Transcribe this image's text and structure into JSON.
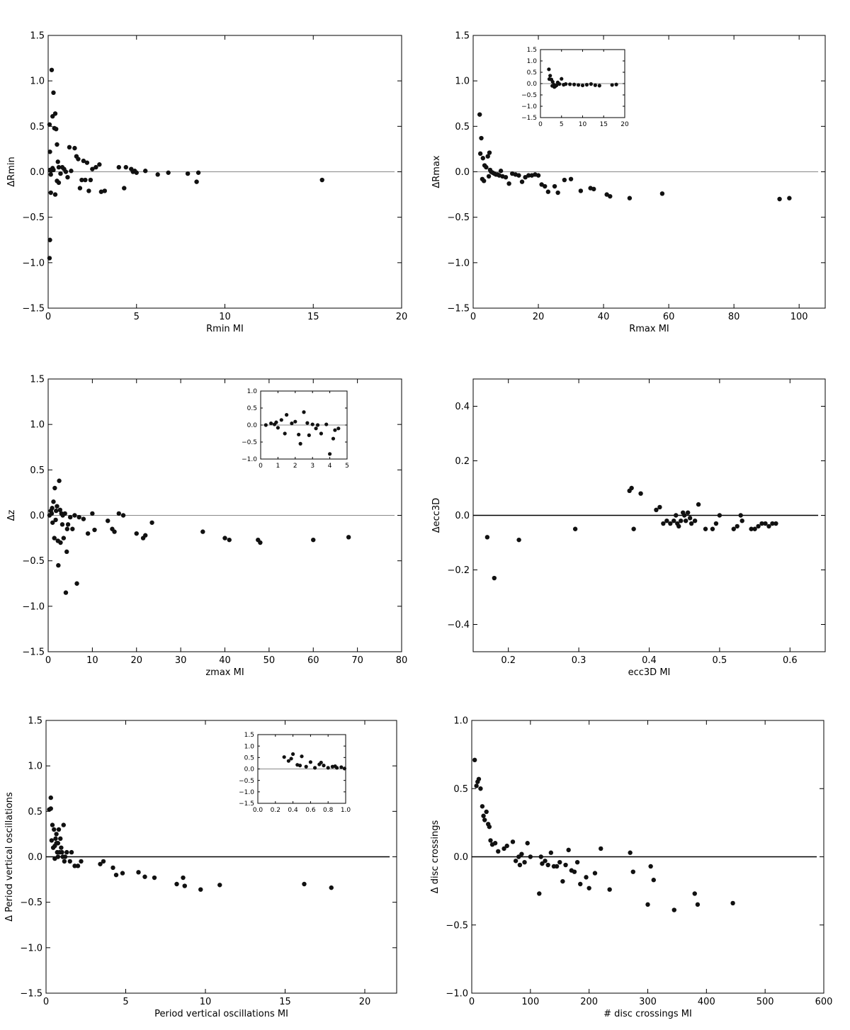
{
  "chart_data": [
    {
      "type": "scatter",
      "xlabel": "Rmin MI",
      "ylabel": "ΔRmin",
      "xlim": [
        0,
        20
      ],
      "ylim": [
        -1.5,
        1.5
      ],
      "xticks": [
        0,
        5,
        10,
        15,
        20
      ],
      "yticks": [
        -1.5,
        -1.0,
        -0.5,
        0.0,
        0.5,
        1.0,
        1.5
      ],
      "xtick_labels": [
        "0",
        "5",
        "10",
        "15",
        "20"
      ],
      "ytick_labels": [
        "−1.5",
        "−1.0",
        "−0.5",
        "0.0",
        "0.5",
        "1.0",
        "1.5"
      ],
      "zero_line": "gray",
      "x": [
        0.05,
        0.1,
        0.15,
        0.2,
        0.25,
        0.3,
        0.35,
        0.4,
        0.45,
        0.5,
        0.55,
        0.6,
        0.05,
        0.1,
        0.15,
        0.2,
        0.25,
        0.3,
        0.4,
        0.5,
        0.6,
        0.7,
        0.8,
        0.9,
        1.0,
        1.1,
        1.2,
        1.3,
        1.5,
        1.6,
        1.7,
        1.8,
        1.9,
        2.0,
        2.1,
        2.2,
        2.3,
        2.4,
        2.5,
        2.7,
        2.9,
        3.0,
        3.2,
        4.0,
        4.3,
        4.4,
        4.7,
        4.8,
        4.9,
        5.0,
        5.5,
        6.2,
        6.8,
        7.9,
        8.4,
        8.5,
        15.5,
        0.1,
        0.15
      ],
      "y": [
        0.52,
        0.22,
        -0.23,
        1.12,
        0.61,
        0.87,
        0.48,
        0.64,
        0.47,
        0.3,
        0.11,
        0.05,
        -0.95,
        -0.75,
        0.01,
        0.02,
        0.04,
        0.02,
        -0.25,
        -0.1,
        -0.12,
        -0.02,
        0.05,
        0.03,
        0.0,
        -0.06,
        0.27,
        0.01,
        0.26,
        0.17,
        0.14,
        -0.18,
        -0.09,
        0.12,
        -0.09,
        0.1,
        -0.21,
        -0.09,
        0.03,
        0.05,
        0.08,
        -0.22,
        -0.21,
        0.05,
        -0.18,
        0.05,
        0.03,
        0.0,
        0.01,
        -0.01,
        0.01,
        -0.03,
        -0.01,
        -0.02,
        -0.11,
        -0.01,
        -0.09,
        0.02,
        -0.03
      ],
      "inset": null
    },
    {
      "type": "scatter",
      "xlabel": "Rmax MI",
      "ylabel": "ΔRmax",
      "xlim": [
        0,
        108
      ],
      "ylim": [
        -1.5,
        1.5
      ],
      "xticks": [
        0,
        20,
        40,
        60,
        80,
        100
      ],
      "yticks": [
        -1.5,
        -1.0,
        -0.5,
        0.0,
        0.5,
        1.0,
        1.5
      ],
      "xtick_labels": [
        "0",
        "20",
        "40",
        "60",
        "80",
        "100"
      ],
      "ytick_labels": [
        "−1.5",
        "−1.0",
        "−0.5",
        "0.0",
        "0.5",
        "1.0",
        "1.5"
      ],
      "zero_line": "gray",
      "x": [
        2,
        2.5,
        3,
        3.5,
        4,
        4.5,
        5,
        5.5,
        6,
        6.5,
        7,
        7.5,
        8,
        8.5,
        9,
        10,
        11,
        12,
        13,
        14,
        15,
        16,
        17,
        18,
        19,
        20,
        21,
        22,
        23,
        25,
        26,
        28,
        30,
        33,
        36,
        37,
        41,
        42,
        48,
        58,
        94,
        97,
        2.2,
        2.8,
        3.3,
        4.8,
        5.2
      ],
      "y": [
        0.63,
        0.37,
        0.15,
        0.07,
        0.05,
        0.17,
        0.21,
        0.0,
        -0.01,
        -0.02,
        -0.03,
        -0.03,
        -0.04,
        0.01,
        -0.05,
        -0.06,
        -0.13,
        -0.02,
        -0.03,
        -0.04,
        -0.11,
        -0.06,
        -0.04,
        -0.04,
        -0.03,
        -0.04,
        -0.14,
        -0.16,
        -0.22,
        -0.16,
        -0.23,
        -0.09,
        -0.08,
        -0.21,
        -0.18,
        -0.19,
        -0.25,
        -0.27,
        -0.29,
        -0.24,
        -0.3,
        -0.29,
        0.2,
        -0.08,
        -0.1,
        -0.05,
        0.02
      ],
      "inset": {
        "xlim": [
          0,
          20
        ],
        "ylim": [
          -1.5,
          1.5
        ],
        "xticks": [
          0,
          5,
          10,
          15,
          20
        ],
        "yticks": [
          -1.5,
          -1.0,
          -0.5,
          0.0,
          0.5,
          1.0,
          1.5
        ],
        "xtick_labels": [
          "0",
          "5",
          "10",
          "15",
          "20"
        ],
        "ytick_labels": [
          "−1.5",
          "−1.0",
          "−0.5",
          "0.0",
          "0.5",
          "1.0",
          "1.5"
        ],
        "x": [
          2,
          2.3,
          2.6,
          2.9,
          3.2,
          3.5,
          3.8,
          4.1,
          4.5,
          5,
          5.5,
          6,
          7,
          8,
          9,
          10,
          11,
          12,
          13,
          14,
          17,
          18,
          2.1,
          2.8,
          3.3
        ],
        "y": [
          0.63,
          0.35,
          0.18,
          0.08,
          -0.05,
          -0.12,
          -0.08,
          0.05,
          -0.02,
          0.21,
          -0.05,
          -0.02,
          -0.03,
          -0.04,
          -0.06,
          -0.08,
          -0.05,
          -0.02,
          -0.07,
          -0.09,
          -0.06,
          -0.04,
          0.2,
          -0.1,
          -0.15
        ]
      }
    },
    {
      "type": "scatter",
      "xlabel": "zmax MI",
      "ylabel": "Δz",
      "xlim": [
        0,
        80
      ],
      "ylim": [
        -1.5,
        1.5
      ],
      "xticks": [
        0,
        10,
        20,
        30,
        40,
        50,
        60,
        70,
        80
      ],
      "yticks": [
        -1.5,
        -1.0,
        -0.5,
        0.0,
        0.5,
        1.0,
        1.5
      ],
      "xtick_labels": [
        "0",
        "10",
        "20",
        "30",
        "40",
        "50",
        "60",
        "70",
        "80"
      ],
      "ytick_labels": [
        "−1.5",
        "−1.0",
        "−0.5",
        "0.0",
        "0.5",
        "1.0",
        "1.5"
      ],
      "zero_line": "gray",
      "x": [
        0.3,
        0.6,
        0.9,
        1.2,
        1.5,
        1.8,
        2.0,
        2.2,
        2.5,
        2.7,
        3.0,
        3.2,
        3.5,
        3.8,
        4.0,
        4.2,
        4.5,
        5,
        5.5,
        6,
        6.5,
        7,
        8,
        9,
        10,
        10.5,
        13.5,
        14.5,
        15,
        16,
        17,
        20,
        21.5,
        22,
        23.5,
        35,
        40,
        41,
        47.5,
        48,
        60,
        68,
        1.0,
        1.4,
        2.3,
        2.8,
        3.3,
        4.3,
        1.7,
        0.8
      ],
      "y": [
        0.0,
        0.05,
        0.08,
        0.15,
        0.3,
        0.05,
        0.1,
        -0.28,
        0.38,
        0.06,
        0.02,
        -0.1,
        -0.25,
        0.02,
        -0.85,
        -0.4,
        -0.1,
        -0.02,
        -0.15,
        0.0,
        -0.75,
        -0.02,
        -0.04,
        -0.2,
        0.02,
        -0.16,
        -0.06,
        -0.15,
        -0.18,
        0.02,
        0.0,
        -0.2,
        -0.25,
        -0.22,
        -0.08,
        -0.18,
        -0.25,
        -0.27,
        -0.27,
        -0.3,
        -0.27,
        -0.24,
        -0.08,
        -0.25,
        -0.55,
        -0.3,
        0.0,
        -0.15,
        -0.05,
        0.02
      ],
      "inset": {
        "xlim": [
          0,
          5
        ],
        "ylim": [
          -1.0,
          1.0
        ],
        "xticks": [
          0,
          1,
          2,
          3,
          4,
          5
        ],
        "yticks": [
          -1.0,
          -0.5,
          0.0,
          0.5,
          1.0
        ],
        "xtick_labels": [
          "0",
          "1",
          "2",
          "3",
          "4",
          "5"
        ],
        "ytick_labels": [
          "−1.0",
          "−0.5",
          "0.0",
          "0.5",
          "1.0"
        ],
        "x": [
          0.3,
          0.6,
          0.9,
          1.2,
          1.5,
          1.8,
          2.0,
          2.2,
          2.5,
          2.7,
          3.0,
          3.2,
          3.5,
          3.8,
          4.0,
          4.2,
          4.5,
          1.0,
          1.4,
          2.3,
          2.8,
          3.3,
          4.3,
          0.8
        ],
        "y": [
          0.0,
          0.05,
          0.08,
          0.15,
          0.3,
          0.05,
          0.1,
          -0.28,
          0.38,
          0.06,
          0.02,
          -0.1,
          -0.25,
          0.02,
          -0.85,
          -0.4,
          -0.1,
          -0.08,
          -0.25,
          -0.55,
          -0.3,
          0.0,
          -0.15,
          0.02
        ]
      }
    },
    {
      "type": "scatter",
      "xlabel": "ecc3D MI",
      "ylabel": "Δecc3D",
      "xlim": [
        0.15,
        0.65
      ],
      "ylim": [
        -0.5,
        0.5
      ],
      "xticks": [
        0.2,
        0.3,
        0.4,
        0.5,
        0.6
      ],
      "yticks": [
        -0.4,
        -0.2,
        0.0,
        0.2,
        0.4
      ],
      "xtick_labels": [
        "0.2",
        "0.3",
        "0.4",
        "0.5",
        "0.6"
      ],
      "ytick_labels": [
        "−0.4",
        "−0.2",
        "0.0",
        "0.2",
        "0.4"
      ],
      "zero_line": "black",
      "x": [
        0.17,
        0.18,
        0.215,
        0.295,
        0.375,
        0.378,
        0.372,
        0.388,
        0.41,
        0.415,
        0.42,
        0.425,
        0.43,
        0.435,
        0.44,
        0.445,
        0.448,
        0.45,
        0.452,
        0.455,
        0.46,
        0.465,
        0.47,
        0.48,
        0.49,
        0.495,
        0.5,
        0.52,
        0.525,
        0.53,
        0.532,
        0.545,
        0.55,
        0.555,
        0.56,
        0.565,
        0.57,
        0.575,
        0.58,
        0.442,
        0.438,
        0.458
      ],
      "y": [
        -0.08,
        -0.23,
        -0.09,
        -0.05,
        0.1,
        -0.05,
        0.09,
        0.08,
        0.02,
        0.03,
        -0.03,
        -0.02,
        -0.03,
        -0.02,
        -0.03,
        -0.02,
        0.01,
        0.0,
        -0.02,
        0.01,
        -0.03,
        -0.02,
        0.04,
        -0.05,
        -0.05,
        -0.03,
        0.0,
        -0.05,
        -0.04,
        0.0,
        -0.02,
        -0.05,
        -0.05,
        -0.04,
        -0.03,
        -0.03,
        -0.04,
        -0.03,
        -0.03,
        -0.04,
        0.0,
        -0.01
      ],
      "inset": null
    },
    {
      "type": "scatter",
      "xlabel": "Period vertical oscillations MI",
      "ylabel": "Δ Period vertical oscillations",
      "xlim": [
        0,
        22
      ],
      "ylim": [
        -1.5,
        1.5
      ],
      "xticks": [
        0,
        5,
        10,
        15,
        20
      ],
      "yticks": [
        -1.5,
        -1.0,
        -0.5,
        0.0,
        0.5,
        1.0,
        1.5
      ],
      "xtick_labels": [
        "0",
        "5",
        "10",
        "15",
        "20"
      ],
      "ytick_labels": [
        "−1.5",
        "−1.0",
        "−0.5",
        "0.0",
        "0.5",
        "1.0",
        "1.5"
      ],
      "zero_line": "black",
      "x": [
        0.2,
        0.3,
        0.35,
        0.4,
        0.45,
        0.5,
        0.55,
        0.6,
        0.65,
        0.7,
        0.75,
        0.8,
        0.85,
        0.9,
        0.95,
        1.0,
        1.1,
        1.2,
        1.3,
        1.5,
        1.6,
        1.8,
        2.0,
        2.2,
        3.4,
        3.6,
        4.2,
        4.4,
        4.8,
        5.8,
        6.2,
        6.8,
        8.2,
        8.6,
        8.7,
        9.7,
        10.9,
        16.2,
        17.9,
        0.3,
        0.55,
        0.75,
        1.05,
        1.15,
        0.65
      ],
      "y": [
        0.52,
        0.65,
        0.18,
        0.35,
        0.1,
        0.3,
        0.12,
        0.2,
        0.15,
        0.05,
        0.0,
        0.3,
        0.05,
        0.2,
        0.1,
        0.05,
        0.35,
        0.0,
        0.05,
        -0.05,
        0.05,
        -0.1,
        -0.1,
        -0.05,
        -0.08,
        -0.05,
        -0.12,
        -0.2,
        -0.18,
        -0.17,
        -0.22,
        -0.23,
        -0.3,
        -0.23,
        -0.32,
        -0.36,
        -0.31,
        -0.3,
        -0.34,
        0.53,
        -0.02,
        0.15,
        0.0,
        -0.05,
        0.25
      ],
      "inset": {
        "xlim": [
          0.0,
          1.0
        ],
        "ylim": [
          -1.5,
          1.5
        ],
        "xticks": [
          0.0,
          0.2,
          0.4,
          0.6,
          0.8,
          1.0
        ],
        "yticks": [
          -1.5,
          -1.0,
          -0.5,
          0.0,
          0.5,
          1.0,
          1.5
        ],
        "xtick_labels": [
          "0.0",
          "0.2",
          "0.4",
          "0.6",
          "0.8",
          "1.0"
        ],
        "ytick_labels": [
          "−1.5",
          "−1.0",
          "−0.5",
          "0.0",
          "0.5",
          "1.0",
          "1.5"
        ],
        "x": [
          0.3,
          0.35,
          0.4,
          0.45,
          0.5,
          0.55,
          0.6,
          0.65,
          0.7,
          0.75,
          0.8,
          0.85,
          0.9,
          0.95,
          1.0,
          0.38,
          0.48,
          0.72,
          0.88
        ],
        "y": [
          0.52,
          0.35,
          0.65,
          0.18,
          0.55,
          0.1,
          0.3,
          0.05,
          0.2,
          0.15,
          0.05,
          0.1,
          0.05,
          0.08,
          0.02,
          0.45,
          0.15,
          0.28,
          0.12
        ]
      }
    },
    {
      "type": "scatter",
      "xlabel": "# disc crossings MI",
      "ylabel": "Δ disc crossings",
      "xlim": [
        0,
        600
      ],
      "ylim": [
        -1.0,
        1.0
      ],
      "xticks": [
        0,
        100,
        200,
        300,
        400,
        500,
        600
      ],
      "yticks": [
        -1.0,
        -0.5,
        0.0,
        0.5,
        1.0
      ],
      "xtick_labels": [
        "0",
        "100",
        "200",
        "300",
        "400",
        "500",
        "600"
      ],
      "ytick_labels": [
        "−1.0",
        "−0.5",
        "0.0",
        "0.5",
        "1.0"
      ],
      "zero_line": "black",
      "x": [
        5,
        8,
        10,
        12,
        15,
        18,
        20,
        22,
        25,
        28,
        30,
        32,
        35,
        40,
        45,
        55,
        60,
        70,
        75,
        80,
        85,
        90,
        95,
        100,
        115,
        120,
        125,
        130,
        135,
        140,
        145,
        150,
        155,
        165,
        170,
        175,
        180,
        185,
        195,
        200,
        210,
        220,
        235,
        270,
        275,
        300,
        305,
        310,
        345,
        380,
        385,
        445,
        82,
        118,
        160
      ],
      "y": [
        0.71,
        0.52,
        0.55,
        0.57,
        0.5,
        0.37,
        0.3,
        0.27,
        0.33,
        0.24,
        0.22,
        0.12,
        0.09,
        0.1,
        0.04,
        0.06,
        0.08,
        0.11,
        -0.03,
        0.0,
        0.02,
        -0.04,
        0.1,
        0.0,
        -0.27,
        -0.05,
        -0.03,
        -0.06,
        0.03,
        -0.07,
        -0.07,
        -0.04,
        -0.18,
        0.05,
        -0.1,
        -0.11,
        -0.04,
        -0.2,
        -0.15,
        -0.23,
        -0.12,
        0.06,
        -0.24,
        0.03,
        -0.11,
        -0.35,
        -0.07,
        -0.17,
        -0.39,
        -0.27,
        -0.35,
        -0.34,
        -0.06,
        0.0,
        -0.06
      ],
      "inset": null
    }
  ]
}
